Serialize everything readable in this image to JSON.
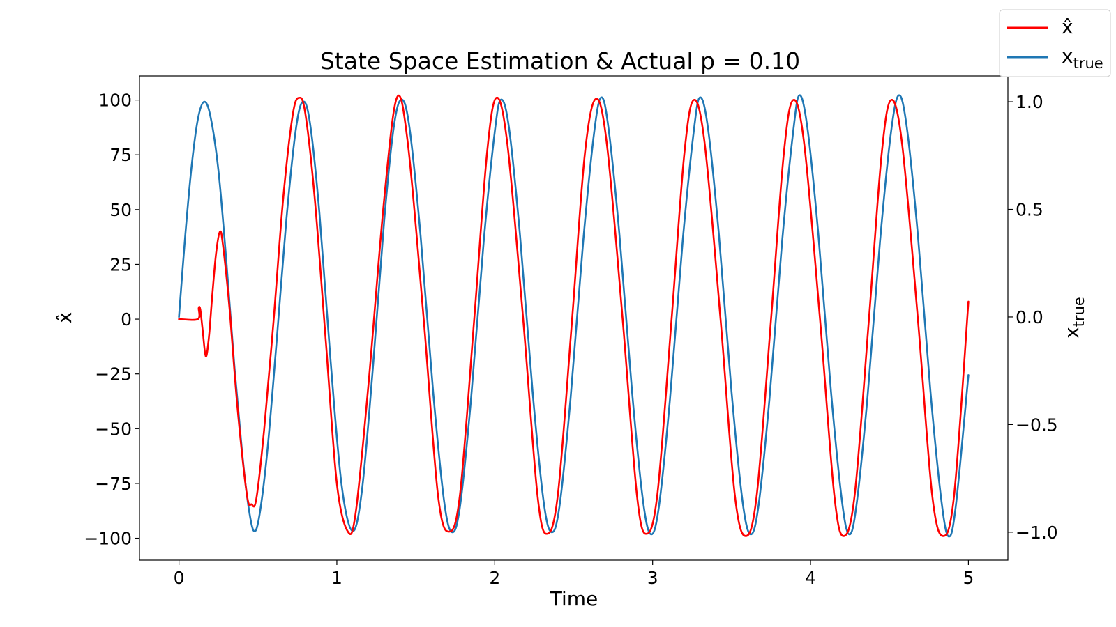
{
  "chart_data": {
    "type": "line",
    "title": "State Space Estimation & Actual p = 0.10",
    "xlabel": "Time",
    "ylabel_left": "x̂",
    "ylabel_right": {
      "base": "x",
      "subscript": "true"
    },
    "xlim": [
      -0.25,
      5.25
    ],
    "ylim_left": [
      -110,
      111
    ],
    "ylim_right": [
      -1.13,
      1.12
    ],
    "x_ticks": [
      0,
      1,
      2,
      3,
      4,
      5
    ],
    "x_tick_labels": [
      "0",
      "1",
      "2",
      "3",
      "4",
      "5"
    ],
    "y_ticks_left": [
      100,
      75,
      50,
      25,
      0,
      -25,
      -50,
      -75,
      -100
    ],
    "y_tick_labels_left": [
      "100",
      "75",
      "50",
      "25",
      "0",
      "−25",
      "−50",
      "−75",
      "−100"
    ],
    "y_ticks_right": [
      1.0,
      0.5,
      0.0,
      -0.5,
      -1.0
    ],
    "y_tick_labels_right": [
      "1.0",
      "0.5",
      "0.0",
      "−0.5",
      "−1.0"
    ],
    "grid": false,
    "legend_position": "top-right (outside plot)",
    "series": [
      {
        "name": "x̂",
        "axis": "left",
        "color": "#ff0000",
        "points": [
          [
            0,
            0
          ],
          [
            0.12,
            0
          ],
          [
            0.125,
            5
          ],
          [
            0.135,
            4.5
          ],
          [
            0.15,
            -5
          ],
          [
            0.17,
            -17
          ],
          [
            0.19,
            -8
          ],
          [
            0.21,
            10
          ],
          [
            0.235,
            30
          ],
          [
            0.26,
            40
          ],
          [
            0.28,
            33
          ],
          [
            0.32,
            5
          ],
          [
            0.37,
            -40
          ],
          [
            0.43,
            -80
          ],
          [
            0.46,
            -84.5
          ],
          [
            0.49,
            -82
          ],
          [
            0.54,
            -50
          ],
          [
            0.6,
            0
          ],
          [
            0.66,
            55
          ],
          [
            0.72,
            93
          ],
          [
            0.76,
            101
          ],
          [
            0.8,
            94
          ],
          [
            0.86,
            55
          ],
          [
            0.93,
            -10
          ],
          [
            1.0,
            -75
          ],
          [
            1.07,
            -97
          ],
          [
            1.12,
            -88
          ],
          [
            1.2,
            -30
          ],
          [
            1.3,
            55
          ],
          [
            1.38,
            101
          ],
          [
            1.45,
            80
          ],
          [
            1.55,
            0
          ],
          [
            1.64,
            -80
          ],
          [
            1.71,
            -97
          ],
          [
            1.78,
            -80
          ],
          [
            1.87,
            0
          ],
          [
            1.95,
            75
          ],
          [
            2.01,
            101
          ],
          [
            2.08,
            80
          ],
          [
            2.18,
            0
          ],
          [
            2.27,
            -80
          ],
          [
            2.33,
            -98
          ],
          [
            2.4,
            -80
          ],
          [
            2.49,
            0
          ],
          [
            2.57,
            75
          ],
          [
            2.64,
            100.5
          ],
          [
            2.71,
            80
          ],
          [
            2.81,
            0
          ],
          [
            2.9,
            -80
          ],
          [
            2.96,
            -98
          ],
          [
            3.03,
            -80
          ],
          [
            3.12,
            0
          ],
          [
            3.2,
            75
          ],
          [
            3.26,
            100
          ],
          [
            3.33,
            80
          ],
          [
            3.43,
            0
          ],
          [
            3.52,
            -80
          ],
          [
            3.59,
            -99
          ],
          [
            3.66,
            -80
          ],
          [
            3.75,
            0
          ],
          [
            3.83,
            75
          ],
          [
            3.89,
            100
          ],
          [
            3.96,
            80
          ],
          [
            4.06,
            0
          ],
          [
            4.15,
            -80
          ],
          [
            4.21,
            -99
          ],
          [
            4.28,
            -80
          ],
          [
            4.37,
            0
          ],
          [
            4.45,
            75
          ],
          [
            4.51,
            100
          ],
          [
            4.58,
            80
          ],
          [
            4.68,
            0
          ],
          [
            4.77,
            -80
          ],
          [
            4.84,
            -99
          ],
          [
            4.91,
            -80
          ],
          [
            5.0,
            8
          ]
        ]
      },
      {
        "name": "x_true",
        "axis": "right",
        "color": "#1f77b4",
        "points": [
          [
            0,
            0
          ],
          [
            0.04,
            0.38
          ],
          [
            0.08,
            0.7
          ],
          [
            0.12,
            0.92
          ],
          [
            0.16,
            1.0
          ],
          [
            0.2,
            0.93
          ],
          [
            0.25,
            0.68
          ],
          [
            0.3,
            0.26
          ],
          [
            0.35,
            -0.22
          ],
          [
            0.4,
            -0.63
          ],
          [
            0.44,
            -0.88
          ],
          [
            0.475,
            -0.995
          ],
          [
            0.51,
            -0.92
          ],
          [
            0.56,
            -0.62
          ],
          [
            0.62,
            -0.1
          ],
          [
            0.68,
            0.45
          ],
          [
            0.74,
            0.87
          ],
          [
            0.785,
            1.0
          ],
          [
            0.83,
            0.9
          ],
          [
            0.89,
            0.48
          ],
          [
            0.96,
            -0.2
          ],
          [
            1.03,
            -0.78
          ],
          [
            1.1,
            -0.995
          ],
          [
            1.16,
            -0.8
          ],
          [
            1.23,
            -0.22
          ],
          [
            1.3,
            0.45
          ],
          [
            1.36,
            0.88
          ],
          [
            1.41,
            1.01
          ],
          [
            1.46,
            0.88
          ],
          [
            1.53,
            0.38
          ],
          [
            1.61,
            -0.35
          ],
          [
            1.68,
            -0.86
          ],
          [
            1.73,
            -1.0
          ],
          [
            1.78,
            -0.88
          ],
          [
            1.85,
            -0.38
          ],
          [
            1.93,
            0.35
          ],
          [
            2.0,
            0.86
          ],
          [
            2.04,
            1.01
          ],
          [
            2.09,
            0.88
          ],
          [
            2.16,
            0.38
          ],
          [
            2.24,
            -0.35
          ],
          [
            2.31,
            -0.86
          ],
          [
            2.36,
            -1.0
          ],
          [
            2.41,
            -0.88
          ],
          [
            2.48,
            -0.38
          ],
          [
            2.56,
            0.35
          ],
          [
            2.63,
            0.86
          ],
          [
            2.675,
            1.02
          ],
          [
            2.72,
            0.88
          ],
          [
            2.79,
            0.38
          ],
          [
            2.87,
            -0.35
          ],
          [
            2.94,
            -0.86
          ],
          [
            2.99,
            -1.01
          ],
          [
            3.04,
            -0.88
          ],
          [
            3.11,
            -0.38
          ],
          [
            3.19,
            0.35
          ],
          [
            3.26,
            0.86
          ],
          [
            3.3,
            1.02
          ],
          [
            3.35,
            0.88
          ],
          [
            3.42,
            0.38
          ],
          [
            3.5,
            -0.35
          ],
          [
            3.57,
            -0.86
          ],
          [
            3.62,
            -1.01
          ],
          [
            3.67,
            -0.88
          ],
          [
            3.74,
            -0.38
          ],
          [
            3.82,
            0.35
          ],
          [
            3.89,
            0.86
          ],
          [
            3.93,
            1.03
          ],
          [
            3.98,
            0.88
          ],
          [
            4.05,
            0.38
          ],
          [
            4.13,
            -0.35
          ],
          [
            4.2,
            -0.86
          ],
          [
            4.245,
            -1.01
          ],
          [
            4.29,
            -0.88
          ],
          [
            4.36,
            -0.38
          ],
          [
            4.44,
            0.35
          ],
          [
            4.51,
            0.86
          ],
          [
            4.56,
            1.03
          ],
          [
            4.61,
            0.88
          ],
          [
            4.68,
            0.38
          ],
          [
            4.76,
            -0.35
          ],
          [
            4.83,
            -0.86
          ],
          [
            4.875,
            -1.02
          ],
          [
            4.92,
            -0.88
          ],
          [
            5.0,
            -0.27
          ]
        ]
      }
    ],
    "legend": {
      "entries": [
        {
          "label": "x̂",
          "color": "#ff0000"
        },
        {
          "label_base": "x",
          "label_sub": "true",
          "color": "#1f77b4"
        }
      ]
    }
  }
}
